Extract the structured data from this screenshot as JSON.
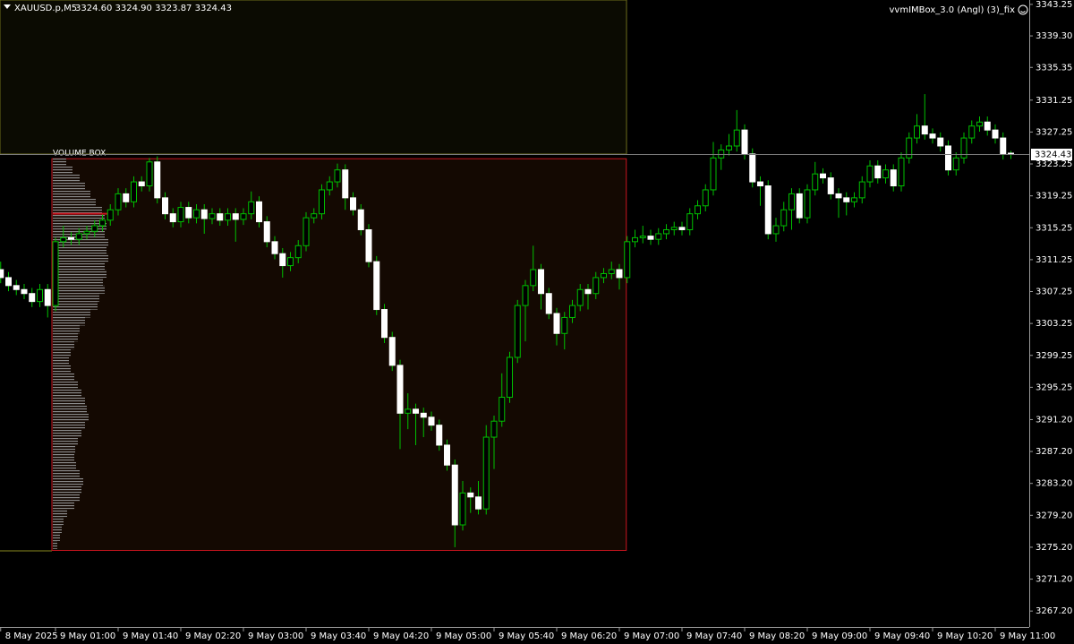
{
  "chart_data": {
    "type": "candlestick",
    "header": {
      "symbol": "XAUUSD.p,M5",
      "quote": "3324.60 3324.90 3323.87 3324.43"
    },
    "indicator": "vvmIMBox_3.0 (Angl) (3)_fix",
    "bull_color": "#00c000",
    "bear_color": "#ffffff",
    "wick_color": "#00c000",
    "ylim": [
      3265.2,
      3343.8
    ],
    "yticks": [
      3343.25,
      {
        "value": 3339.3,
        "label": "3339.30"
      },
      3335.35,
      3331.25,
      3327.25,
      3323.25,
      3319.25,
      3315.25,
      3311.25,
      3307.25,
      3303.25,
      3299.25,
      3295.25,
      {
        "value": 3291.2,
        "label": "3291.20"
      },
      {
        "value": 3287.2,
        "label": "3287.20"
      },
      {
        "value": 3283.2,
        "label": "3283.20"
      },
      {
        "value": 3279.2,
        "label": "3279.20"
      },
      {
        "value": 3275.2,
        "label": "3275.20"
      },
      {
        "value": 3271.2,
        "label": "3271.20"
      },
      {
        "value": 3267.2,
        "label": "3267.20"
      }
    ],
    "categories": [
      "8 May 2025",
      null,
      null,
      null,
      null,
      null,
      null,
      "9 May 01:00",
      null,
      null,
      null,
      null,
      null,
      null,
      null,
      "9 May 01:40",
      null,
      null,
      null,
      null,
      null,
      null,
      null,
      "9 May 02:20",
      null,
      null,
      null,
      null,
      null,
      null,
      null,
      "9 May 03:00",
      null,
      null,
      null,
      null,
      null,
      null,
      null,
      "9 May 03:40",
      null,
      null,
      null,
      null,
      null,
      null,
      null,
      "9 May 04:20",
      null,
      null,
      null,
      null,
      null,
      null,
      null,
      "9 May 05:00",
      null,
      null,
      null,
      null,
      null,
      null,
      null,
      "9 May 05:40",
      null,
      null,
      null,
      null,
      null,
      null,
      null,
      "9 May 06:20",
      null,
      null,
      null,
      null,
      null,
      null,
      null,
      "9 May 07:00",
      null,
      null,
      null,
      null,
      null,
      null,
      null,
      "9 May 07:40",
      null,
      null,
      null,
      null,
      null,
      null,
      null,
      "9 May 08:20",
      null,
      null,
      null,
      null,
      null,
      null,
      null,
      "9 May 09:00",
      null,
      null,
      null,
      null,
      null,
      null,
      null,
      "9 May 09:40",
      null,
      null,
      null,
      null,
      null,
      null,
      null,
      "9 May 10:20",
      null,
      null,
      null,
      null,
      null,
      null,
      null,
      "9 May 11:00",
      null,
      null
    ],
    "ohlc": [
      [
        3310,
        3311,
        3308.3,
        3309
      ],
      [
        3309,
        3309.7,
        3307.3,
        3308
      ],
      [
        3308,
        3308.7,
        3306.8,
        3307.5
      ],
      [
        3307.5,
        3308.2,
        3306.3,
        3307
      ],
      [
        3307,
        3307.7,
        3305.3,
        3306
      ],
      [
        3306,
        3308.2,
        3305.3,
        3307.5
      ],
      [
        3307.5,
        3308.2,
        3304,
        3305.5
      ],
      [
        3305.5,
        3314,
        3304.8,
        3313.5
      ],
      [
        3313.5,
        3315.5,
        3312.8,
        3314
      ],
      [
        3314,
        3314.7,
        3313.1,
        3313.8
      ],
      [
        3313.8,
        3315.2,
        3313.1,
        3314.5
      ],
      [
        3314.5,
        3315.5,
        3313.8,
        3314.8
      ],
      [
        3314.8,
        3316.2,
        3314.1,
        3315.5
      ],
      [
        3315.5,
        3316.9,
        3314.8,
        3316.2
      ],
      [
        3316.2,
        3318.2,
        3315.5,
        3317.5
      ],
      [
        3317.5,
        3320.2,
        3316.8,
        3319.5
      ],
      [
        3319.5,
        3320.2,
        3317.8,
        3318.5
      ],
      [
        3318.5,
        3321.7,
        3317.8,
        3321
      ],
      [
        3321,
        3321.7,
        3319.8,
        3320.5
      ],
      [
        3320.5,
        3324,
        3319.8,
        3323.5
      ],
      [
        3323.5,
        3324.2,
        3318.3,
        3319
      ],
      [
        3319,
        3319.7,
        3316.3,
        3317
      ],
      [
        3317,
        3317.7,
        3315.3,
        3316
      ],
      [
        3316,
        3318.5,
        3315.3,
        3317.8
      ],
      [
        3317.8,
        3318.5,
        3315.8,
        3316.5
      ],
      [
        3316.5,
        3318.2,
        3315.8,
        3317.5
      ],
      [
        3317.5,
        3318.2,
        3314.5,
        3316.4
      ],
      [
        3316.4,
        3317.7,
        3315.7,
        3317
      ],
      [
        3317,
        3317.7,
        3315.5,
        3316.2
      ],
      [
        3316.2,
        3317.7,
        3315.5,
        3317
      ],
      [
        3317,
        3317.7,
        3313.5,
        3316.3
      ],
      [
        3316.3,
        3317.7,
        3315.6,
        3317
      ],
      [
        3317,
        3319.8,
        3316.3,
        3318.5
      ],
      [
        3318.5,
        3319.2,
        3315.3,
        3316
      ],
      [
        3316,
        3316.7,
        3312.8,
        3313.5
      ],
      [
        3313.5,
        3314.2,
        3311.3,
        3312
      ],
      [
        3312,
        3312.7,
        3309,
        3310.5
      ],
      [
        3310.5,
        3312.2,
        3309.8,
        3311.5
      ],
      [
        3311.5,
        3313.7,
        3310.8,
        3313
      ],
      [
        3313,
        3317.2,
        3312.3,
        3316.5
      ],
      [
        3316.5,
        3317.7,
        3315.8,
        3317
      ],
      [
        3317,
        3320.7,
        3316.3,
        3320
      ],
      [
        3320,
        3321.7,
        3319.3,
        3321
      ],
      [
        3321,
        3323.3,
        3320.3,
        3322.5
      ],
      [
        3322.5,
        3323.2,
        3317.5,
        3319
      ],
      [
        3319,
        3319.7,
        3316.8,
        3317.5
      ],
      [
        3317.5,
        3318.2,
        3314.3,
        3315
      ],
      [
        3315,
        3315.7,
        3310.3,
        3311
      ],
      [
        3311,
        3311.7,
        3304.3,
        3305
      ],
      [
        3305,
        3305.7,
        3300.8,
        3301.5
      ],
      [
        3301.5,
        3302.2,
        3297.3,
        3298
      ],
      [
        3298,
        3298.7,
        3287.5,
        3292
      ],
      [
        3292,
        3294.5,
        3290,
        3292.5
      ],
      [
        3292.5,
        3293.2,
        3288,
        3292
      ],
      [
        3292,
        3292.7,
        3289,
        3291.5
      ],
      [
        3291.5,
        3292.2,
        3289.8,
        3290.5
      ],
      [
        3290.5,
        3291.2,
        3287.3,
        3288
      ],
      [
        3288,
        3288.7,
        3284.8,
        3285.5
      ],
      [
        3285.5,
        3286.2,
        3275.2,
        3278
      ],
      [
        3278,
        3283.5,
        3277.3,
        3282
      ],
      [
        3282,
        3282.7,
        3279.5,
        3281.5
      ],
      [
        3281.5,
        3283.5,
        3279.3,
        3280
      ],
      [
        3280,
        3290.5,
        3279.3,
        3289
      ],
      [
        3289,
        3291.7,
        3285,
        3291
      ],
      [
        3291,
        3297,
        3290.3,
        3294
      ],
      [
        3294,
        3299.7,
        3293.3,
        3299
      ],
      [
        3299,
        3306.2,
        3298.3,
        3305.5
      ],
      [
        3305.5,
        3308.7,
        3301,
        3308
      ],
      [
        3308,
        3313,
        3307.3,
        3310
      ],
      [
        3310,
        3310.7,
        3305,
        3307
      ],
      [
        3307,
        3307.7,
        3303.8,
        3304.5
      ],
      [
        3304.5,
        3305.2,
        3300.5,
        3302
      ],
      [
        3302,
        3304.7,
        3300,
        3304
      ],
      [
        3304,
        3306.2,
        3303.3,
        3305.5
      ],
      [
        3305.5,
        3308.2,
        3304.8,
        3307.5
      ],
      [
        3307.5,
        3308.2,
        3305,
        3307
      ],
      [
        3307,
        3309.7,
        3306.3,
        3309
      ],
      [
        3309,
        3310.2,
        3308.3,
        3309.5
      ],
      [
        3309.5,
        3311,
        3308.8,
        3310
      ],
      [
        3310,
        3310.7,
        3307.5,
        3309
      ],
      [
        3309,
        3314.2,
        3308.3,
        3313.5
      ],
      [
        3313.5,
        3315,
        3312.8,
        3314
      ],
      [
        3314,
        3315.5,
        3313.3,
        3314.2
      ],
      [
        3314.2,
        3315,
        3313.1,
        3313.8
      ],
      [
        3313.8,
        3315.2,
        3313.1,
        3314.5
      ],
      [
        3314.5,
        3315.7,
        3313.8,
        3315
      ],
      [
        3315,
        3316,
        3314.3,
        3315.3
      ],
      [
        3315.3,
        3316,
        3314.3,
        3315
      ],
      [
        3315,
        3317.7,
        3314.3,
        3317
      ],
      [
        3317,
        3318.7,
        3316.3,
        3318
      ],
      [
        3318,
        3320.7,
        3317.3,
        3320
      ],
      [
        3320,
        3326,
        3319.3,
        3324
      ],
      [
        3324,
        3325.7,
        3322.5,
        3325
      ],
      [
        3325,
        3327,
        3324.3,
        3325.5
      ],
      [
        3325.5,
        3330,
        3324.8,
        3327.5
      ],
      [
        3327.5,
        3328.2,
        3323.8,
        3324.5
      ],
      [
        3324.5,
        3325.2,
        3320.3,
        3321
      ],
      [
        3321,
        3321.7,
        3318,
        3320.5
      ],
      [
        3320.5,
        3321.2,
        3313.8,
        3314.5
      ],
      [
        3314.5,
        3316.5,
        3313.5,
        3315.5
      ],
      [
        3315.5,
        3318.5,
        3314.8,
        3317.5
      ],
      [
        3317.5,
        3320.2,
        3315,
        3319.5
      ],
      [
        3319.5,
        3320.2,
        3315.8,
        3316.5
      ],
      [
        3316.5,
        3320.7,
        3315.8,
        3320
      ],
      [
        3320,
        3323.5,
        3319.3,
        3322
      ],
      [
        3322,
        3322.7,
        3320.8,
        3321.5
      ],
      [
        3321.5,
        3322.2,
        3318.8,
        3319.5
      ],
      [
        3319.5,
        3320.2,
        3316.5,
        3319
      ],
      [
        3319,
        3319.7,
        3316.8,
        3318.5
      ],
      [
        3318.5,
        3319.7,
        3317.8,
        3319
      ],
      [
        3319,
        3321.7,
        3318.3,
        3321
      ],
      [
        3321,
        3323.7,
        3320.3,
        3323
      ],
      [
        3323,
        3323.7,
        3320.8,
        3321.5
      ],
      [
        3321.5,
        3323.2,
        3320.8,
        3322.5
      ],
      [
        3322.5,
        3323.2,
        3319.8,
        3320.5
      ],
      [
        3320.5,
        3324.7,
        3319.8,
        3324
      ],
      [
        3324,
        3327.2,
        3323.3,
        3326.5
      ],
      [
        3326.5,
        3329.5,
        3325.8,
        3328
      ],
      [
        3328,
        3332,
        3326.3,
        3327
      ],
      [
        3327,
        3327.7,
        3325.8,
        3326.5
      ],
      [
        3326.5,
        3327.2,
        3324.8,
        3325.5
      ],
      [
        3325.5,
        3326.2,
        3321.8,
        3322.5
      ],
      [
        3322.5,
        3324.7,
        3321.8,
        3324
      ],
      [
        3324,
        3327.2,
        3323.3,
        3326.5
      ],
      [
        3326.5,
        3328.7,
        3325.8,
        3328
      ],
      [
        3328,
        3329.2,
        3327.3,
        3328.5
      ],
      [
        3328.5,
        3329.2,
        3326.8,
        3327.5
      ],
      [
        3327.5,
        3328.2,
        3325.8,
        3326.5
      ],
      [
        3326.5,
        3327.2,
        3323.8,
        3324.5
      ],
      [
        3324.6,
        3324.9,
        3323.87,
        3324.43
      ]
    ],
    "volume_box": {
      "label": "VOLUME BOX",
      "high": 3323.9,
      "low": 3274.8,
      "start": 7,
      "end": 80,
      "color": "#c8141e",
      "poc": 3317
    },
    "volume_profile": {
      "color": "#8a8a8a",
      "levels": [
        3323.5,
        3322.5,
        3321.5,
        3320.5,
        3319.5,
        3318.5,
        3317.5,
        3316.5,
        3315.5,
        3314.5,
        3313.5,
        3312.5,
        3311.5,
        3310.5,
        3309.5,
        3308.5,
        3307.5,
        3306.5,
        3305.5,
        3304.5,
        3303.5,
        3302.5,
        3301.5,
        3300.5,
        3299.5,
        3298.5,
        3297.5,
        3296.5,
        3295.5,
        3294.5,
        3293.5,
        3292.5,
        3291.5,
        3290.5,
        3289.5,
        3288.5,
        3287.5,
        3286.5,
        3285.5,
        3284.5,
        3283.5,
        3282.5,
        3281.5,
        3280.5,
        3279.5,
        3278.5,
        3277.5,
        3276.5,
        3275.5
      ],
      "values": [
        15,
        22,
        30,
        36,
        42,
        48,
        55,
        58,
        60,
        58,
        62,
        60,
        62,
        58,
        60,
        56,
        58,
        52,
        50,
        42,
        36,
        30,
        28,
        24,
        20,
        18,
        20,
        24,
        28,
        32,
        36,
        38,
        40,
        36,
        32,
        28,
        25,
        24,
        26,
        30,
        34,
        32,
        30,
        24,
        16,
        12,
        10,
        8,
        5
      ]
    }
  }
}
